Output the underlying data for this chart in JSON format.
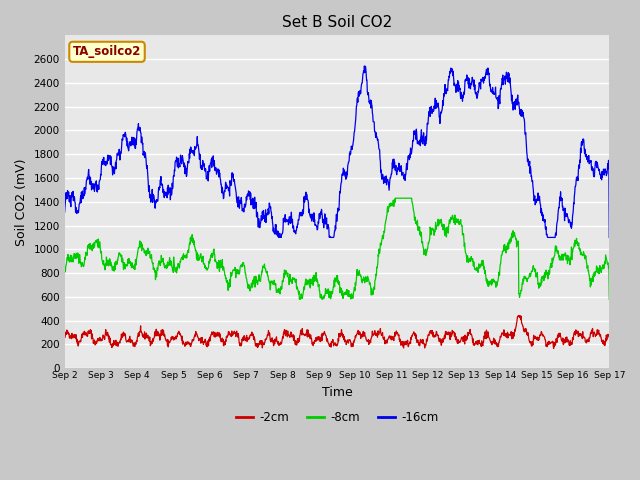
{
  "title": "Set B Soil CO2",
  "xlabel": "Time",
  "ylabel": "Soil CO2 (mV)",
  "ylim": [
    0,
    2800
  ],
  "yticks": [
    0,
    200,
    400,
    600,
    800,
    1000,
    1200,
    1400,
    1600,
    1800,
    2000,
    2200,
    2400,
    2600
  ],
  "fig_bg_color": "#c8c8c8",
  "plot_bg_color": "#e8e8e8",
  "line_colors": {
    "2cm": "#cc0000",
    "8cm": "#00cc00",
    "16cm": "#0000ee"
  },
  "legend_label_box": "TA_soilco2",
  "legend_box_bg": "#ffffcc",
  "legend_box_edge": "#cc8800",
  "legend_entries": [
    "-2cm",
    "-8cm",
    "-16cm"
  ],
  "xtick_labels": [
    "Sep 2",
    "Sep 3",
    "Sep 4",
    "Sep 5",
    "Sep 6",
    "Sep 7",
    "Sep 8",
    "Sep 9",
    "Sep 10",
    "Sep 11",
    "Sep 12",
    "Sep 13",
    "Sep 14",
    "Sep 15",
    "Sep 16",
    "Sep 17"
  ],
  "n_points": 1500
}
